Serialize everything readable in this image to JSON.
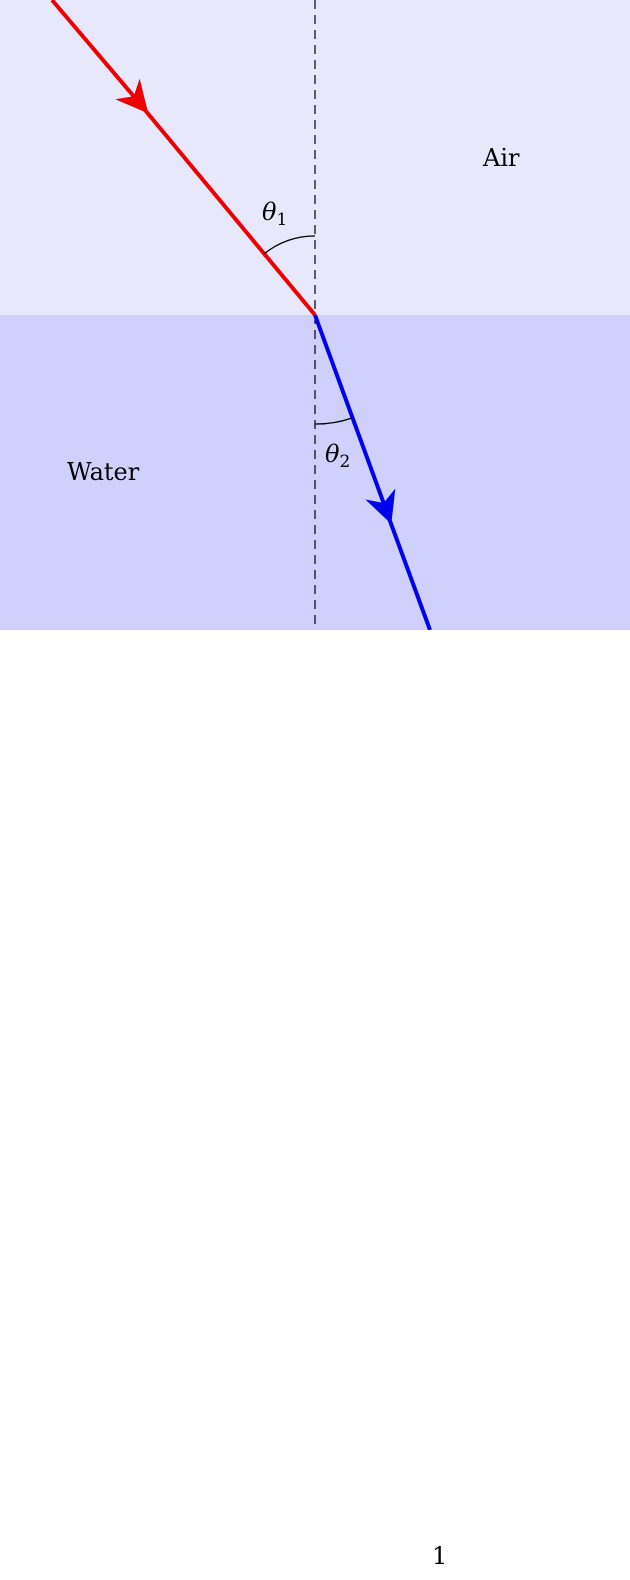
{
  "diagram": {
    "medium_top": {
      "label": "Air",
      "color": "#e8e8fc"
    },
    "medium_bottom": {
      "label": "Water",
      "color": "#d0d0fc"
    },
    "incident_ray": {
      "color": "#ee0000"
    },
    "refracted_ray": {
      "color": "#0000ee"
    },
    "normal_line": {
      "style": "dashed"
    },
    "angle_incidence": {
      "symbol": "θ",
      "subscript": "1"
    },
    "angle_refraction": {
      "symbol": "θ",
      "subscript": "2"
    }
  },
  "page": {
    "number": "1"
  }
}
